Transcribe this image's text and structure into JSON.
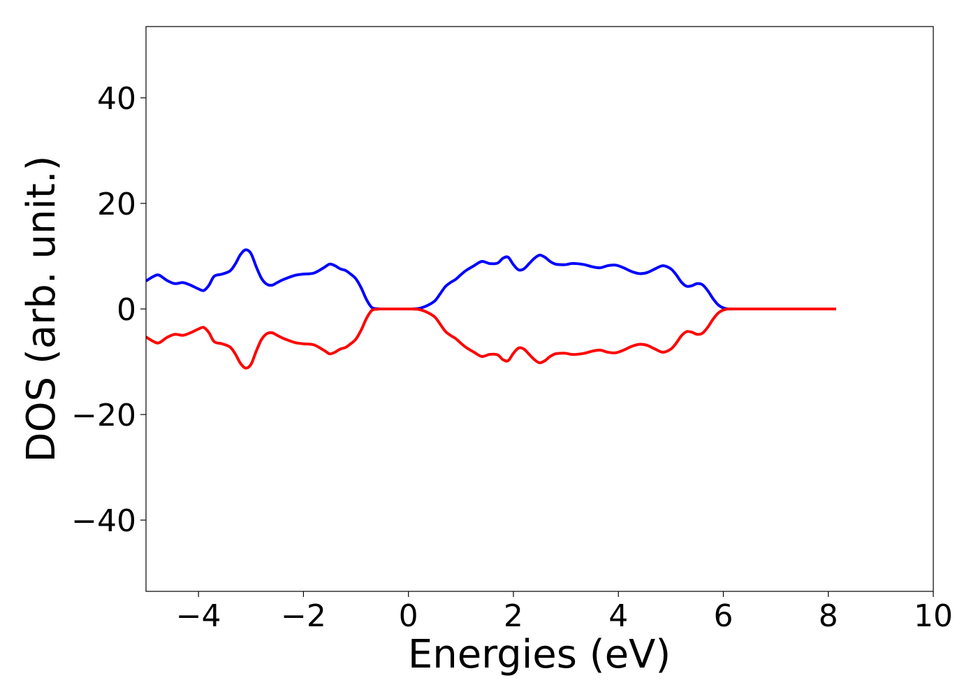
{
  "chart_data": {
    "type": "line",
    "title": "",
    "xlabel": "Energies (eV)",
    "ylabel": "DOS (arb. unit.)",
    "xlim": [
      -5,
      10
    ],
    "ylim": [
      -53.5,
      53.5
    ],
    "xticks": [
      -4,
      -2,
      0,
      2,
      4,
      6,
      8,
      10
    ],
    "yticks": [
      -40,
      -20,
      0,
      20,
      40
    ],
    "xtick_labels": [
      "−4",
      "−2",
      "0",
      "2",
      "4",
      "6",
      "8",
      "10"
    ],
    "ytick_labels": [
      "−40",
      "−20",
      "0",
      "20",
      "40"
    ],
    "grid": false,
    "legend": "none",
    "series": [
      {
        "color": "#0000ff",
        "x": [
          -5.0,
          -4.85,
          -4.75,
          -4.6,
          -4.45,
          -4.3,
          -4.15,
          -4.0,
          -3.9,
          -3.8,
          -3.7,
          -3.55,
          -3.4,
          -3.3,
          -3.2,
          -3.1,
          -3.0,
          -2.9,
          -2.8,
          -2.7,
          -2.6,
          -2.5,
          -2.4,
          -2.3,
          -2.15,
          -2.0,
          -1.8,
          -1.6,
          -1.5,
          -1.4,
          -1.3,
          -1.2,
          -1.1,
          -1.0,
          -0.9,
          -0.8,
          -0.7,
          -0.6,
          -0.5,
          -0.4,
          -0.3,
          -0.2,
          0.0,
          0.2,
          0.35,
          0.5,
          0.6,
          0.7,
          0.8,
          0.9,
          1.0,
          1.1,
          1.25,
          1.4,
          1.55,
          1.7,
          1.8,
          1.9,
          2.0,
          2.1,
          2.2,
          2.3,
          2.4,
          2.5,
          2.6,
          2.7,
          2.8,
          2.9,
          3.0,
          3.1,
          3.2,
          3.35,
          3.5,
          3.65,
          3.8,
          3.95,
          4.1,
          4.25,
          4.4,
          4.55,
          4.7,
          4.85,
          5.0,
          5.1,
          5.2,
          5.3,
          5.4,
          5.5,
          5.6,
          5.7,
          5.8,
          5.9,
          6.0,
          6.1,
          6.2,
          6.3,
          6.4,
          6.5,
          7.0,
          7.5,
          8.0,
          8.15
        ],
        "y": [
          5.3,
          6.2,
          6.4,
          5.4,
          4.8,
          5.0,
          4.5,
          3.8,
          3.5,
          4.5,
          6.2,
          6.6,
          7.2,
          8.5,
          10.3,
          11.2,
          10.5,
          8.0,
          5.8,
          4.7,
          4.5,
          5.0,
          5.5,
          5.9,
          6.4,
          6.6,
          6.8,
          7.9,
          8.5,
          8.2,
          7.6,
          7.3,
          6.6,
          5.7,
          4.0,
          1.8,
          0.3,
          0.05,
          0.0,
          0.0,
          0.0,
          0.0,
          0.0,
          0.1,
          0.6,
          1.5,
          2.8,
          4.2,
          5.0,
          5.6,
          6.5,
          7.3,
          8.2,
          9.0,
          8.6,
          8.7,
          9.6,
          9.8,
          8.4,
          7.4,
          7.6,
          8.6,
          9.6,
          10.2,
          9.8,
          9.0,
          8.5,
          8.4,
          8.4,
          8.6,
          8.6,
          8.4,
          8.0,
          7.8,
          8.2,
          8.3,
          7.8,
          7.1,
          6.7,
          6.9,
          7.6,
          8.2,
          7.6,
          6.5,
          5.1,
          4.3,
          4.4,
          4.8,
          4.6,
          3.5,
          2.0,
          0.8,
          0.2,
          0.0,
          0.0,
          0.0,
          0.0,
          0.0,
          0.0,
          0.0,
          0.0,
          0.0
        ]
      },
      {
        "color": "#ff0000",
        "x": [
          -5.0,
          -4.85,
          -4.75,
          -4.6,
          -4.45,
          -4.3,
          -4.15,
          -4.0,
          -3.9,
          -3.8,
          -3.7,
          -3.55,
          -3.4,
          -3.3,
          -3.2,
          -3.1,
          -3.0,
          -2.9,
          -2.8,
          -2.7,
          -2.6,
          -2.5,
          -2.4,
          -2.3,
          -2.15,
          -2.0,
          -1.8,
          -1.6,
          -1.5,
          -1.4,
          -1.3,
          -1.2,
          -1.1,
          -1.0,
          -0.9,
          -0.8,
          -0.7,
          -0.6,
          -0.5,
          -0.4,
          -0.3,
          -0.2,
          0.0,
          0.2,
          0.35,
          0.5,
          0.6,
          0.7,
          0.8,
          0.9,
          1.0,
          1.1,
          1.25,
          1.4,
          1.55,
          1.7,
          1.8,
          1.9,
          2.0,
          2.1,
          2.2,
          2.3,
          2.4,
          2.5,
          2.6,
          2.7,
          2.8,
          2.9,
          3.0,
          3.1,
          3.2,
          3.35,
          3.5,
          3.65,
          3.8,
          3.95,
          4.1,
          4.25,
          4.4,
          4.55,
          4.7,
          4.85,
          5.0,
          5.1,
          5.2,
          5.3,
          5.4,
          5.5,
          5.6,
          5.7,
          5.8,
          5.9,
          6.0,
          6.1,
          6.2,
          6.3,
          6.4,
          6.5,
          7.0,
          7.5,
          8.0,
          8.15
        ],
        "y": [
          -5.3,
          -6.2,
          -6.4,
          -5.4,
          -4.8,
          -5.0,
          -4.5,
          -3.8,
          -3.5,
          -4.5,
          -6.2,
          -6.6,
          -7.2,
          -8.5,
          -10.3,
          -11.2,
          -10.5,
          -8.0,
          -5.8,
          -4.7,
          -4.5,
          -5.0,
          -5.5,
          -5.9,
          -6.4,
          -6.6,
          -6.8,
          -7.9,
          -8.5,
          -8.2,
          -7.6,
          -7.3,
          -6.6,
          -5.7,
          -4.0,
          -1.8,
          -0.3,
          -0.05,
          0.0,
          0.0,
          0.0,
          0.0,
          0.0,
          -0.1,
          -0.6,
          -1.5,
          -2.8,
          -4.2,
          -5.0,
          -5.6,
          -6.5,
          -7.3,
          -8.2,
          -9.0,
          -8.6,
          -8.7,
          -9.6,
          -9.8,
          -8.4,
          -7.4,
          -7.6,
          -8.6,
          -9.6,
          -10.2,
          -9.8,
          -9.0,
          -8.5,
          -8.4,
          -8.4,
          -8.6,
          -8.6,
          -8.4,
          -8.0,
          -7.8,
          -8.2,
          -8.3,
          -7.8,
          -7.1,
          -6.7,
          -6.9,
          -7.6,
          -8.2,
          -7.6,
          -6.5,
          -5.1,
          -4.3,
          -4.4,
          -4.8,
          -4.6,
          -3.5,
          -2.0,
          -0.8,
          -0.2,
          0.0,
          0.0,
          0.0,
          0.0,
          0.0,
          0.0,
          0.0,
          0.0,
          0.0
        ]
      }
    ]
  }
}
